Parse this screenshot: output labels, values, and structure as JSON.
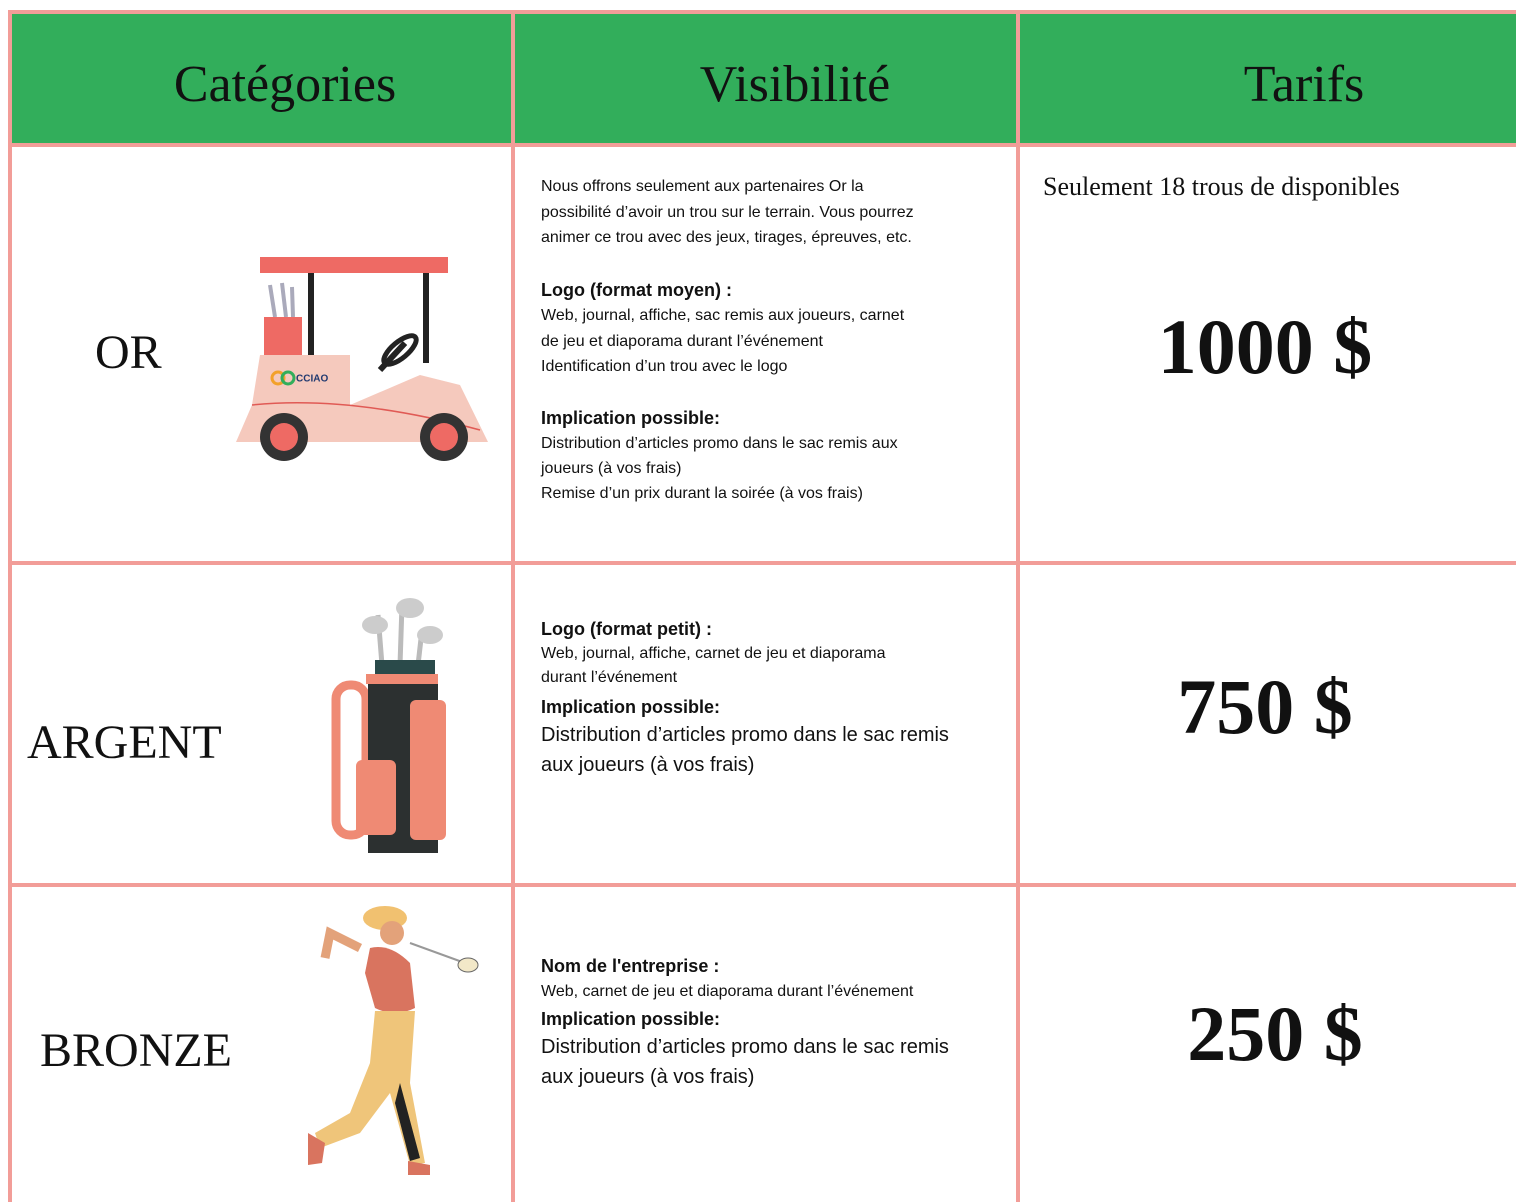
{
  "header": {
    "columns": [
      "Catégories",
      "Visibilité",
      "Tarifs"
    ]
  },
  "rows": [
    {
      "category": "OR",
      "logo": "CCIAO",
      "visibility": [
        {
          "lines": [
            "Nous offrons seulement aux partenaires Or la",
            "possibilité d’avoir un trou sur le terrain. Vous pourrez",
            "animer ce trou avec des jeux, tirages, épreuves, etc."
          ]
        },
        {
          "heading": "Logo (format moyen) :",
          "lines": [
            "Web, journal, affiche, sac remis aux joueurs, carnet",
            "de jeu et diaporama durant l’événement",
            "Identification d’un trou avec le logo"
          ]
        },
        {
          "heading": "Implication possible:",
          "lines": [
            "Distribution d’articles promo dans le sac remis aux",
            "joueurs (à vos frais)",
            "Remise d’un prix durant la soirée (à vos frais)"
          ]
        }
      ],
      "note": "Seulement 18 trous de disponibles",
      "price": "1000 $"
    },
    {
      "category": "ARGENT",
      "visibility": [
        {
          "heading": "Logo (format petit) :",
          "lines": [
            "Web, journal, affiche, carnet de jeu et diaporama",
            "durant l’événement"
          ]
        },
        {
          "heading": "Implication possible:",
          "lines": [
            "Distribution d’articles promo dans le sac remis",
            "aux joueurs (à vos frais)"
          ]
        }
      ],
      "price": "750 $"
    },
    {
      "category": "BRONZE",
      "visibility": [
        {
          "heading": "Nom de l'entreprise :",
          "lines": [
            "Web, carnet de jeu et diaporama durant l’événement"
          ]
        },
        {
          "heading": "Implication possible:",
          "lines": [
            "Distribution d’articles promo dans le sac remis",
            "aux joueurs (à vos frais)"
          ]
        }
      ],
      "price": "250 $"
    }
  ]
}
